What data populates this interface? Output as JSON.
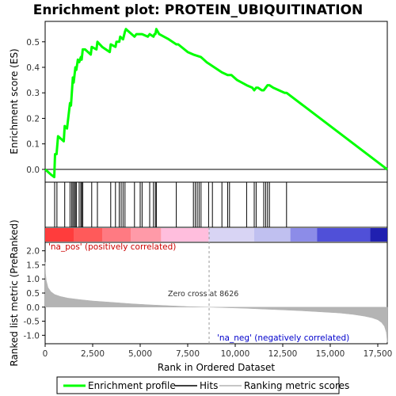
{
  "title": "Enrichment plot: PROTEIN_UBIQUITINATION",
  "chart_data": [
    {
      "type": "line",
      "panel": "enrichment",
      "ylabel": "Enrichment score (ES)",
      "xlim": [
        0,
        18000
      ],
      "ylim": [
        -0.05,
        0.58
      ],
      "yticks": [
        0.0,
        0.1,
        0.2,
        0.3,
        0.4,
        0.5
      ],
      "ytick_labels": [
        "0.0",
        "0.1",
        "0.2",
        "0.3",
        "0.4",
        "0.5"
      ],
      "grid": false,
      "line_color": "#00ff00",
      "series": [
        {
          "name": "Enrichment profile",
          "x": [
            0,
            300,
            480,
            520,
            600,
            680,
            980,
            1030,
            1150,
            1310,
            1360,
            1460,
            1500,
            1590,
            1640,
            1720,
            1790,
            1880,
            1920,
            1980,
            2050,
            2100,
            2400,
            2450,
            2700,
            2750,
            3000,
            3400,
            3450,
            3700,
            3750,
            3900,
            3950,
            4100,
            4200,
            4250,
            4700,
            4800,
            5000,
            5100,
            5400,
            5500,
            5700,
            5750,
            5800,
            5850,
            6000,
            6500,
            6900,
            7000,
            7500,
            7800,
            8200,
            8500,
            8900,
            9300,
            9600,
            9800,
            10100,
            10600,
            10900,
            11000,
            11100,
            11200,
            11400,
            11500,
            11600,
            11700,
            11800,
            12000,
            12600,
            12700,
            18000
          ],
          "y": [
            0.0,
            -0.02,
            -0.03,
            0.06,
            0.06,
            0.13,
            0.11,
            0.17,
            0.16,
            0.26,
            0.25,
            0.36,
            0.34,
            0.4,
            0.39,
            0.43,
            0.42,
            0.44,
            0.43,
            0.47,
            0.47,
            0.47,
            0.45,
            0.48,
            0.47,
            0.5,
            0.48,
            0.46,
            0.49,
            0.48,
            0.5,
            0.5,
            0.52,
            0.51,
            0.54,
            0.55,
            0.52,
            0.53,
            0.53,
            0.53,
            0.52,
            0.53,
            0.52,
            0.53,
            0.53,
            0.55,
            0.53,
            0.51,
            0.49,
            0.49,
            0.46,
            0.45,
            0.44,
            0.42,
            0.4,
            0.38,
            0.37,
            0.37,
            0.35,
            0.33,
            0.32,
            0.31,
            0.32,
            0.32,
            0.31,
            0.31,
            0.32,
            0.33,
            0.33,
            0.32,
            0.3,
            0.3,
            0.0
          ]
        }
      ]
    },
    {
      "type": "scatter",
      "panel": "hits",
      "hit_color": "#000000",
      "hit_ranks": [
        500,
        620,
        1030,
        1310,
        1400,
        1460,
        1530,
        1590,
        1640,
        1790,
        1880,
        1920,
        1980,
        2450,
        2750,
        3450,
        3700,
        3900,
        4000,
        4100,
        4200,
        4700,
        5000,
        5100,
        5500,
        5700,
        5800,
        5850,
        6900,
        7800,
        7900,
        8000,
        8100,
        8200,
        8600,
        8800,
        9300,
        9600,
        9700,
        10600,
        11000,
        11100,
        11500,
        11600,
        11700,
        11800,
        12700
      ]
    },
    {
      "type": "heatmap",
      "panel": "ranked-list-colorbar",
      "segments": [
        {
          "from": 0,
          "to": 1500,
          "color": "#ff3c3c"
        },
        {
          "from": 1500,
          "to": 3000,
          "color": "#ff5a5a"
        },
        {
          "from": 3000,
          "to": 4500,
          "color": "#ff7a82"
        },
        {
          "from": 4500,
          "to": 6100,
          "color": "#ff9aa8"
        },
        {
          "from": 6100,
          "to": 8600,
          "color": "#ffbedd"
        },
        {
          "from": 8600,
          "to": 11000,
          "color": "#d8d4f4"
        },
        {
          "from": 11000,
          "to": 12900,
          "color": "#c0c0f0"
        },
        {
          "from": 12900,
          "to": 14300,
          "color": "#8c8ce8"
        },
        {
          "from": 14300,
          "to": 17100,
          "color": "#5050d8"
        },
        {
          "from": 17100,
          "to": 18000,
          "color": "#2020b0"
        }
      ]
    },
    {
      "type": "area",
      "panel": "ranked-metric",
      "xlabel": "Rank in Ordered Dataset",
      "ylabel": "Ranked list metric (PreRanked)",
      "xlim": [
        0,
        18000
      ],
      "ylim": [
        -1.3,
        2.3
      ],
      "xticks": [
        0,
        2500,
        5000,
        7500,
        10000,
        12500,
        15000,
        17500
      ],
      "xtick_labels": [
        "0",
        "2,500",
        "5,000",
        "7,500",
        "10,000",
        "12,500",
        "15,000",
        "17,500"
      ],
      "yticks": [
        -1.0,
        -0.5,
        0.0,
        0.5,
        1.0,
        1.5,
        2.0
      ],
      "ytick_labels": [
        "-1.0",
        "-0.5",
        "0.0",
        "0.5",
        "1.0",
        "1.5",
        "2.0"
      ],
      "fill_color": "#b4b4b4",
      "zero_cross": 8626,
      "series": [
        {
          "name": "Ranking metric scores",
          "x": [
            0,
            20,
            60,
            150,
            300,
            500,
            800,
            1200,
            1800,
            2500,
            3500,
            4500,
            5500,
            6500,
            7500,
            8626,
            9500,
            10500,
            11500,
            12500,
            13500,
            14500,
            15500,
            16200,
            16800,
            17200,
            17500,
            17700,
            17850,
            17950,
            18000
          ],
          "y": [
            1.6,
            1.2,
            0.95,
            0.7,
            0.55,
            0.45,
            0.38,
            0.32,
            0.27,
            0.22,
            0.17,
            0.12,
            0.08,
            0.05,
            0.02,
            0.0,
            -0.02,
            -0.04,
            -0.07,
            -0.1,
            -0.13,
            -0.17,
            -0.21,
            -0.26,
            -0.32,
            -0.38,
            -0.45,
            -0.55,
            -0.68,
            -0.9,
            -1.25
          ]
        }
      ]
    }
  ],
  "annotations": {
    "pos_label": "'na_pos' (positively correlated)",
    "neg_label": "'na_neg' (negatively correlated)",
    "zero_cross_label": "Zero cross at 8626"
  },
  "legend": {
    "items": [
      {
        "label": "Enrichment profile",
        "color": "#00ff00"
      },
      {
        "label": "Hits",
        "color": "#000000"
      },
      {
        "label": "Ranking metric scores",
        "color": "#b4b4b4"
      }
    ]
  }
}
